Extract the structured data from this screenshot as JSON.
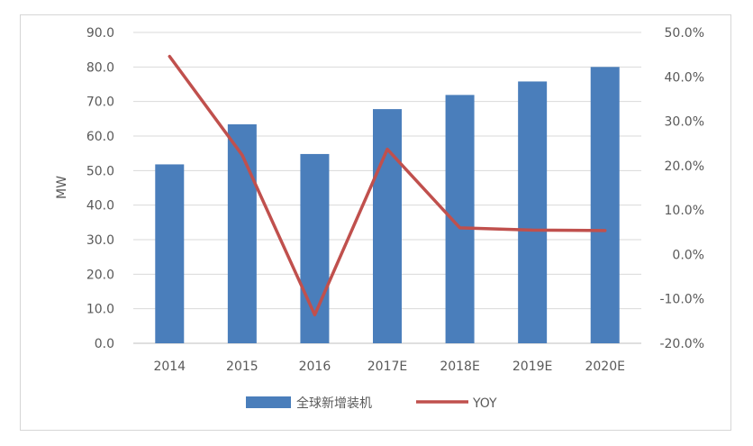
{
  "chart_data": {
    "type": "bar",
    "categories": [
      "2014",
      "2015",
      "2016",
      "2017E",
      "2018E",
      "2019E",
      "2020E"
    ],
    "series": [
      {
        "name": "全球新增装机",
        "type": "bar",
        "axis": "left",
        "color": "#4a7ebb",
        "values": [
          51.8,
          63.4,
          54.8,
          67.8,
          71.9,
          75.8,
          80.0
        ]
      },
      {
        "name": "YOY",
        "type": "line",
        "axis": "right",
        "color": "#c0504d",
        "values": [
          44.6,
          22.4,
          -13.6,
          23.7,
          6.0,
          5.5,
          5.4
        ]
      }
    ],
    "ylabel": "MW",
    "ylim": [
      0,
      90
    ],
    "yticks": [
      "90.0",
      "80.0",
      "70.0",
      "60.0",
      "50.0",
      "40.0",
      "30.0",
      "20.0",
      "10.0",
      "0.0"
    ],
    "y2lim": [
      -20,
      50
    ],
    "y2ticks": [
      "50.0%",
      "40.0%",
      "30.0%",
      "20.0%",
      "10.0%",
      "0.0%",
      "-10.0%",
      "-20.0%"
    ],
    "grid": true,
    "legend": "bottom"
  }
}
